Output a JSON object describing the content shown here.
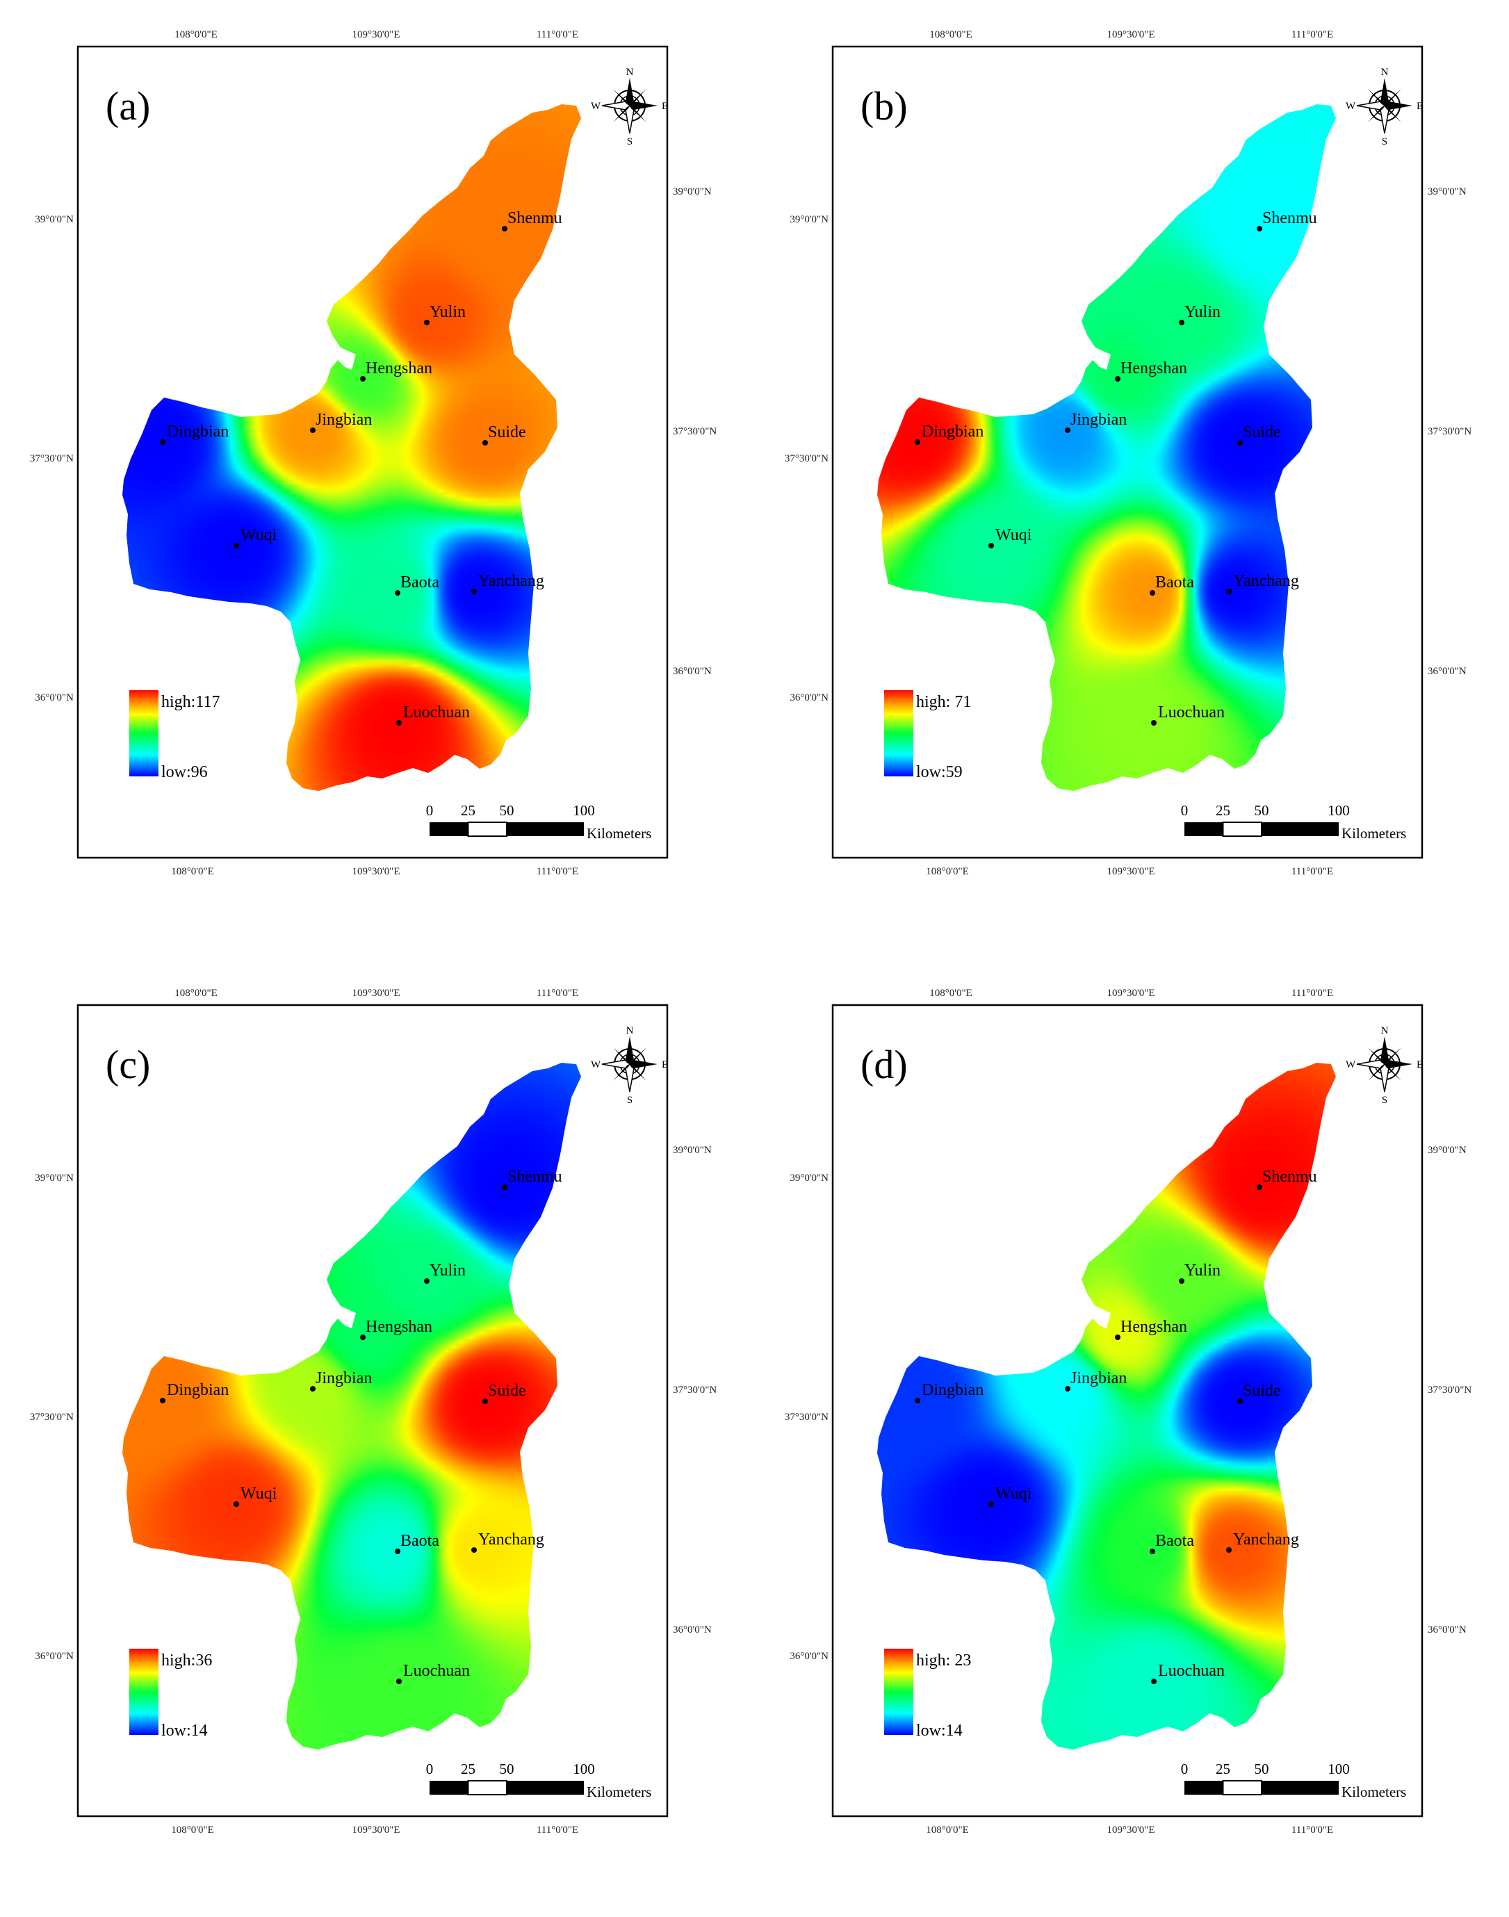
{
  "compass": {
    "n": "N",
    "s": "S",
    "e": "E",
    "w": "W"
  },
  "scale_bar": {
    "ticks": [
      "0",
      "25",
      "50",
      "100"
    ],
    "unit": "Kilometers"
  },
  "axes": {
    "top": [
      "108°0'0\"E",
      "109°30'0\"E",
      "111°0'0\"E"
    ],
    "bottom": [
      "108°0'0\"E",
      "109°30'0\"E",
      "111°0'0\"E"
    ],
    "left": [
      "39°0'0\"N",
      "37°30'0\"N",
      "36°0'0\"N"
    ],
    "right": [
      "39°0'0\"N",
      "37°30'0\"N",
      "36°0'0\"N"
    ]
  },
  "cities": [
    "Shenmu",
    "Yulin",
    "Hengshan",
    "Jingbian",
    "Dingbian",
    "Suide",
    "Wuqi",
    "Baota",
    "Yanchang",
    "Luochuan"
  ],
  "colors": {
    "high": "#ff0000",
    "orange": "#ff8c00",
    "yellow": "#ffff00",
    "green": "#00ff3c",
    "cyan": "#00ffff",
    "low": "#0000ff"
  },
  "panels": [
    {
      "label": "(a)",
      "legend_high": "high:117",
      "legend_low": "low:96",
      "values": {
        "Shenmu": 0.88,
        "Yulin": 0.92,
        "Hengshan": 0.55,
        "Jingbian": 0.85,
        "Dingbian": 0.0,
        "Suide": 0.88,
        "Wuqi": 0.0,
        "Baota": 0.38,
        "Yanchang": 0.0,
        "Luochuan": 1.0
      }
    },
    {
      "label": "(b)",
      "legend_high": "high: 71",
      "legend_low": "low:59",
      "values": {
        "Shenmu": 0.25,
        "Yulin": 0.42,
        "Hengshan": 0.45,
        "Jingbian": 0.15,
        "Dingbian": 1.0,
        "Suide": 0.0,
        "Wuqi": 0.38,
        "Baota": 0.85,
        "Yanchang": 0.0,
        "Luochuan": 0.62
      }
    },
    {
      "label": "(c)",
      "legend_high": "high:36",
      "legend_low": "low:14",
      "values": {
        "Shenmu": 0.0,
        "Yulin": 0.42,
        "Hengshan": 0.45,
        "Jingbian": 0.65,
        "Dingbian": 0.88,
        "Suide": 1.0,
        "Wuqi": 0.95,
        "Baota": 0.3,
        "Yanchang": 0.75,
        "Luochuan": 0.55
      }
    },
    {
      "label": "(d)",
      "legend_high": "high: 23",
      "legend_low": "low:14",
      "values": {
        "Shenmu": 1.0,
        "Yulin": 0.58,
        "Hengshan": 0.7,
        "Jingbian": 0.25,
        "Dingbian": 0.05,
        "Suide": 0.0,
        "Wuqi": 0.0,
        "Baota": 0.52,
        "Yanchang": 0.92,
        "Luochuan": 0.32
      }
    }
  ]
}
